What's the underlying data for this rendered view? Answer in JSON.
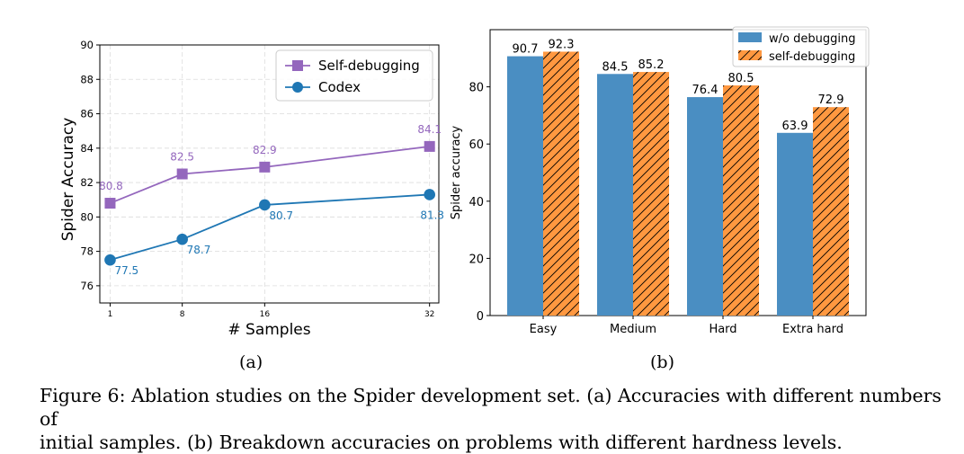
{
  "chart_data": [
    {
      "type": "line",
      "xlabel": "# Samples",
      "ylabel": "Spider Accuracy",
      "x": [
        1,
        8,
        16,
        32
      ],
      "xticks": [
        "1",
        "8",
        "16",
        "32"
      ],
      "ylim": [
        75,
        90
      ],
      "yticks": [
        "76",
        "78",
        "80",
        "82",
        "84",
        "86",
        "88",
        "90"
      ],
      "grid": true,
      "legend_position": "top-right",
      "series": [
        {
          "name": "Self-debugging",
          "marker": "square",
          "color": "#9467bd",
          "values": [
            80.8,
            82.5,
            82.9,
            84.1
          ],
          "labels": [
            "80.8",
            "82.5",
            "82.9",
            "84.1"
          ]
        },
        {
          "name": "Codex",
          "marker": "circle",
          "color": "#1f77b4",
          "values": [
            77.5,
            78.7,
            80.7,
            81.3
          ],
          "labels": [
            "77.5",
            "78.7",
            "80.7",
            "81.3"
          ]
        }
      ]
    },
    {
      "type": "bar",
      "ylabel": "Spider accuracy",
      "categories": [
        "Easy",
        "Medium",
        "Hard",
        "Extra hard"
      ],
      "ylim": [
        0,
        100
      ],
      "yticks": [
        "0",
        "20",
        "40",
        "60",
        "80"
      ],
      "grid": false,
      "legend_position": "top-right",
      "series": [
        {
          "name": "w/o debugging",
          "color": "#4a8ec2",
          "hatch": false,
          "values": [
            90.7,
            84.5,
            76.4,
            63.9
          ],
          "labels": [
            "90.7",
            "84.5",
            "76.4",
            "63.9"
          ]
        },
        {
          "name": "self-debugging",
          "color": "#ff9840",
          "hatch": true,
          "values": [
            92.3,
            85.2,
            80.5,
            72.9
          ],
          "labels": [
            "92.3",
            "85.2",
            "80.5",
            "72.9"
          ]
        }
      ]
    }
  ],
  "sublabels": {
    "a": "(a)",
    "b": "(b)"
  },
  "caption": {
    "line1": "Figure 6: Ablation studies on the Spider development set. (a) Accuracies with different numbers of",
    "line2": "initial samples. (b) Breakdown accuracies on problems with different hardness levels."
  }
}
